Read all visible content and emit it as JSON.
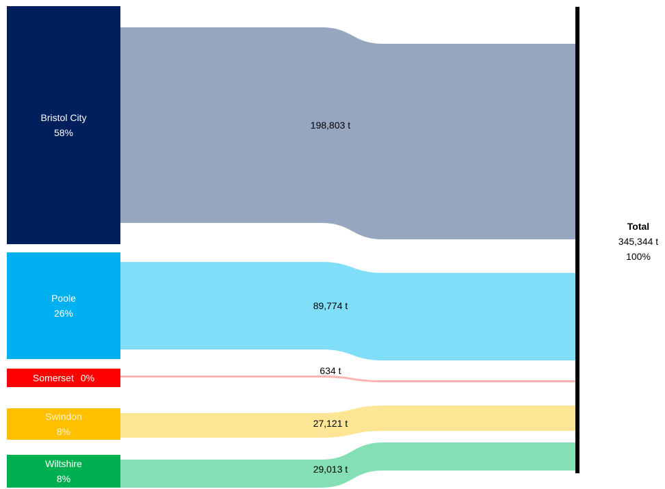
{
  "chart_data": {
    "type": "sankey",
    "units": "t",
    "target": {
      "name": "Total",
      "value_label": "345,344 t",
      "percent_label": "100%",
      "value": 345344,
      "color": "#000000"
    },
    "sources": [
      {
        "name": "Bristol City",
        "percent_label": "58%",
        "value": 198803,
        "value_label": "198,803 t",
        "node_color": "#001f5c",
        "flow_color": "#97a6bf",
        "text_color": "#ffffff"
      },
      {
        "name": "Poole",
        "percent_label": "26%",
        "value": 89774,
        "value_label": "89,774 t",
        "node_color": "#00b0f0",
        "flow_color": "#80def8",
        "text_color": "#ffffff"
      },
      {
        "name": "Somerset",
        "percent_label": "0%",
        "value": 634,
        "value_label": "634 t",
        "node_color": "#ff0000",
        "flow_color": "#ffb3b3",
        "text_color": "#ffffff"
      },
      {
        "name": "Swindon",
        "percent_label": "8%",
        "value": 27121,
        "value_label": "27,121 t",
        "node_color": "#ffc000",
        "flow_color": "#fde596",
        "text_color": "#fff2c6"
      },
      {
        "name": "Wiltshire",
        "percent_label": "8%",
        "value": 29013,
        "value_label": "29,013 t",
        "node_color": "#00b050",
        "flow_color": "#84e0b4",
        "text_color": "#ffffff"
      }
    ]
  }
}
